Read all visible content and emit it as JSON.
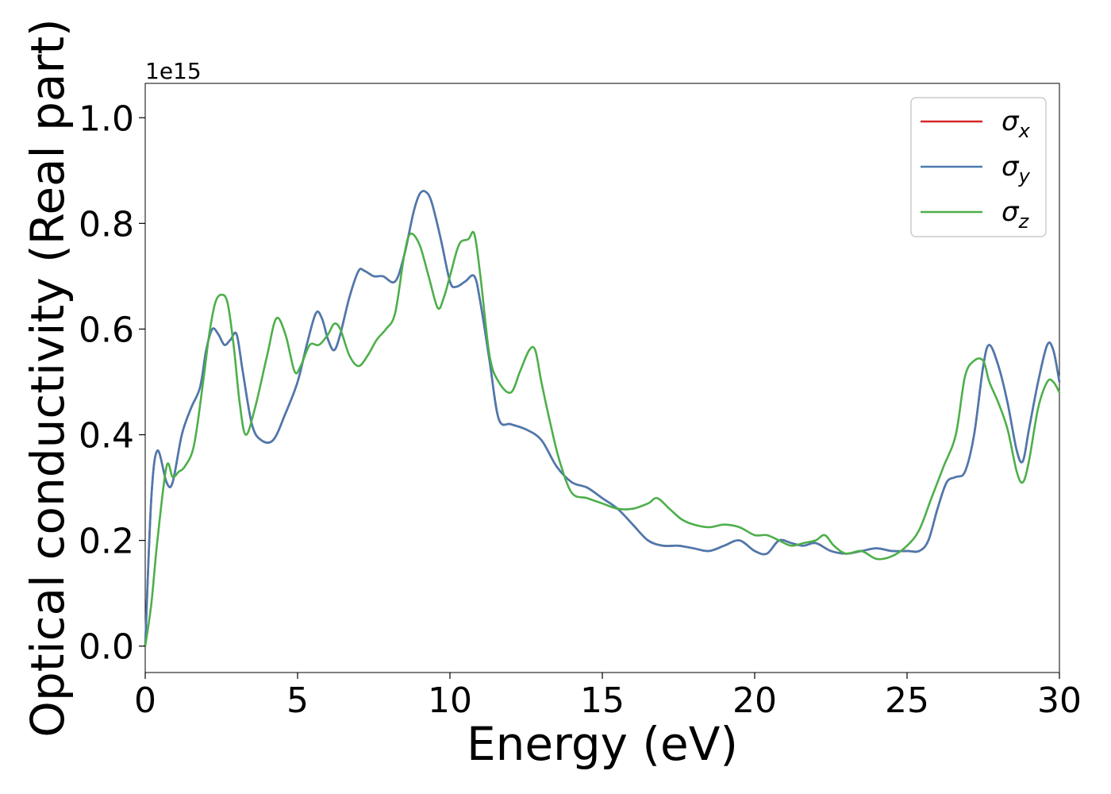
{
  "chart_data": {
    "type": "line",
    "title": "",
    "xlabel": "Energy (eV)",
    "ylabel": "Optical conductivity (Real part)",
    "y_offset_label": "1e15",
    "xlim": [
      0,
      30
    ],
    "ylim": [
      -0.05,
      1.065
    ],
    "x_ticks": [
      0,
      5,
      10,
      15,
      20,
      25,
      30
    ],
    "y_ticks": [
      0.0,
      0.2,
      0.4,
      0.6,
      0.8,
      1.0
    ],
    "x_tick_labels": [
      "0",
      "5",
      "10",
      "15",
      "20",
      "25",
      "30"
    ],
    "y_tick_labels": [
      "0.0",
      "0.2",
      "0.4",
      "0.6",
      "0.8",
      "1.0"
    ],
    "grid": false,
    "legend_position": "top-right",
    "series": [
      {
        "name": "σx",
        "legend_symbol": "σ",
        "legend_sub": "x",
        "color": "#d62728",
        "x": [
          0,
          0.2,
          0.4,
          0.7,
          0.9,
          1.2,
          1.5,
          1.8,
          2.0,
          2.2,
          2.4,
          2.6,
          2.8,
          3.0,
          3.2,
          3.5,
          3.8,
          4.2,
          4.6,
          5.0,
          5.3,
          5.6,
          5.8,
          6.0,
          6.2,
          6.4,
          6.7,
          7.0,
          7.2,
          7.5,
          7.8,
          8.2,
          8.5,
          8.8,
          9.0,
          9.2,
          9.4,
          9.7,
          10.0,
          10.2,
          10.5,
          10.8,
          11.0,
          11.3,
          11.6,
          12.0,
          12.5,
          13.0,
          13.5,
          14.0,
          14.5,
          15.0,
          15.5,
          16.0,
          16.5,
          17.0,
          17.5,
          18.0,
          18.5,
          19.0,
          19.5,
          20.0,
          20.4,
          20.8,
          21.2,
          21.6,
          22.0,
          22.5,
          23.0,
          23.5,
          24.0,
          24.5,
          25.0,
          25.4,
          25.7,
          26.0,
          26.3,
          26.6,
          26.9,
          27.2,
          27.5,
          27.7,
          28.0,
          28.3,
          28.6,
          28.8,
          29.0,
          29.3,
          29.6,
          29.8,
          30.0
        ],
        "values": [
          0.0,
          0.28,
          0.37,
          0.31,
          0.31,
          0.4,
          0.45,
          0.49,
          0.56,
          0.6,
          0.59,
          0.57,
          0.58,
          0.59,
          0.52,
          0.42,
          0.39,
          0.39,
          0.44,
          0.5,
          0.57,
          0.63,
          0.62,
          0.58,
          0.56,
          0.59,
          0.66,
          0.71,
          0.71,
          0.7,
          0.7,
          0.69,
          0.74,
          0.82,
          0.855,
          0.86,
          0.84,
          0.77,
          0.69,
          0.68,
          0.69,
          0.7,
          0.65,
          0.54,
          0.43,
          0.42,
          0.41,
          0.39,
          0.34,
          0.31,
          0.3,
          0.28,
          0.26,
          0.23,
          0.2,
          0.19,
          0.19,
          0.185,
          0.18,
          0.19,
          0.2,
          0.18,
          0.175,
          0.2,
          0.195,
          0.19,
          0.195,
          0.18,
          0.175,
          0.18,
          0.185,
          0.18,
          0.18,
          0.18,
          0.2,
          0.26,
          0.31,
          0.32,
          0.33,
          0.4,
          0.53,
          0.57,
          0.53,
          0.46,
          0.37,
          0.35,
          0.41,
          0.5,
          0.57,
          0.56,
          0.5
        ]
      },
      {
        "name": "σy",
        "legend_symbol": "σ",
        "legend_sub": "y",
        "color": "#4a7ab0",
        "x": [
          0,
          0.2,
          0.4,
          0.7,
          0.9,
          1.2,
          1.5,
          1.8,
          2.0,
          2.2,
          2.4,
          2.6,
          2.8,
          3.0,
          3.2,
          3.5,
          3.8,
          4.2,
          4.6,
          5.0,
          5.3,
          5.6,
          5.8,
          6.0,
          6.2,
          6.4,
          6.7,
          7.0,
          7.2,
          7.5,
          7.8,
          8.2,
          8.5,
          8.8,
          9.0,
          9.2,
          9.4,
          9.7,
          10.0,
          10.2,
          10.5,
          10.8,
          11.0,
          11.3,
          11.6,
          12.0,
          12.5,
          13.0,
          13.5,
          14.0,
          14.5,
          15.0,
          15.5,
          16.0,
          16.5,
          17.0,
          17.5,
          18.0,
          18.5,
          19.0,
          19.5,
          20.0,
          20.4,
          20.8,
          21.2,
          21.6,
          22.0,
          22.5,
          23.0,
          23.5,
          24.0,
          24.5,
          25.0,
          25.4,
          25.7,
          26.0,
          26.3,
          26.6,
          26.9,
          27.2,
          27.5,
          27.7,
          28.0,
          28.3,
          28.6,
          28.8,
          29.0,
          29.3,
          29.6,
          29.8,
          30.0
        ],
        "values": [
          0.0,
          0.28,
          0.37,
          0.31,
          0.31,
          0.4,
          0.45,
          0.49,
          0.56,
          0.6,
          0.59,
          0.57,
          0.58,
          0.59,
          0.52,
          0.42,
          0.39,
          0.39,
          0.44,
          0.5,
          0.57,
          0.63,
          0.62,
          0.58,
          0.56,
          0.59,
          0.66,
          0.71,
          0.71,
          0.7,
          0.7,
          0.69,
          0.74,
          0.82,
          0.855,
          0.86,
          0.84,
          0.77,
          0.69,
          0.68,
          0.69,
          0.7,
          0.65,
          0.54,
          0.43,
          0.42,
          0.41,
          0.39,
          0.34,
          0.31,
          0.3,
          0.28,
          0.26,
          0.23,
          0.2,
          0.19,
          0.19,
          0.185,
          0.18,
          0.19,
          0.2,
          0.18,
          0.175,
          0.2,
          0.195,
          0.19,
          0.195,
          0.18,
          0.175,
          0.18,
          0.185,
          0.18,
          0.18,
          0.18,
          0.2,
          0.26,
          0.31,
          0.32,
          0.33,
          0.4,
          0.53,
          0.57,
          0.53,
          0.46,
          0.37,
          0.35,
          0.41,
          0.5,
          0.57,
          0.56,
          0.5
        ]
      },
      {
        "name": "σz",
        "legend_symbol": "σ",
        "legend_sub": "z",
        "color": "#4daf4a",
        "x": [
          0,
          0.2,
          0.4,
          0.7,
          0.9,
          1.1,
          1.3,
          1.6,
          1.9,
          2.1,
          2.3,
          2.5,
          2.7,
          2.9,
          3.1,
          3.3,
          3.6,
          4.0,
          4.3,
          4.6,
          4.9,
          5.1,
          5.4,
          5.7,
          6.0,
          6.2,
          6.4,
          6.7,
          7.0,
          7.3,
          7.6,
          7.9,
          8.2,
          8.5,
          8.7,
          9.0,
          9.3,
          9.6,
          9.8,
          10.0,
          10.3,
          10.6,
          10.8,
          11.0,
          11.3,
          11.6,
          12.0,
          12.3,
          12.6,
          12.8,
          13.0,
          13.3,
          13.6,
          14.0,
          14.5,
          15.0,
          15.5,
          16.0,
          16.5,
          16.8,
          17.2,
          17.6,
          18.0,
          18.5,
          19.0,
          19.5,
          20.0,
          20.4,
          20.8,
          21.2,
          21.6,
          22.0,
          22.3,
          22.6,
          23.0,
          23.5,
          24.0,
          24.5,
          25.0,
          25.4,
          25.8,
          26.2,
          26.6,
          26.9,
          27.2,
          27.5,
          27.7,
          28.0,
          28.3,
          28.6,
          28.8,
          29.0,
          29.3,
          29.6,
          29.8,
          30.0
        ],
        "values": [
          0.0,
          0.08,
          0.2,
          0.34,
          0.32,
          0.33,
          0.34,
          0.38,
          0.5,
          0.59,
          0.65,
          0.665,
          0.65,
          0.57,
          0.46,
          0.4,
          0.45,
          0.55,
          0.62,
          0.59,
          0.52,
          0.53,
          0.57,
          0.57,
          0.59,
          0.61,
          0.6,
          0.55,
          0.53,
          0.55,
          0.58,
          0.6,
          0.63,
          0.74,
          0.78,
          0.76,
          0.7,
          0.64,
          0.66,
          0.7,
          0.76,
          0.77,
          0.78,
          0.7,
          0.55,
          0.5,
          0.48,
          0.52,
          0.56,
          0.56,
          0.5,
          0.42,
          0.35,
          0.29,
          0.28,
          0.27,
          0.26,
          0.26,
          0.27,
          0.28,
          0.26,
          0.24,
          0.23,
          0.225,
          0.23,
          0.225,
          0.21,
          0.21,
          0.2,
          0.19,
          0.195,
          0.2,
          0.21,
          0.19,
          0.175,
          0.18,
          0.165,
          0.17,
          0.19,
          0.22,
          0.28,
          0.34,
          0.4,
          0.51,
          0.54,
          0.54,
          0.5,
          0.46,
          0.41,
          0.33,
          0.31,
          0.35,
          0.45,
          0.5,
          0.5,
          0.48
        ]
      }
    ]
  }
}
